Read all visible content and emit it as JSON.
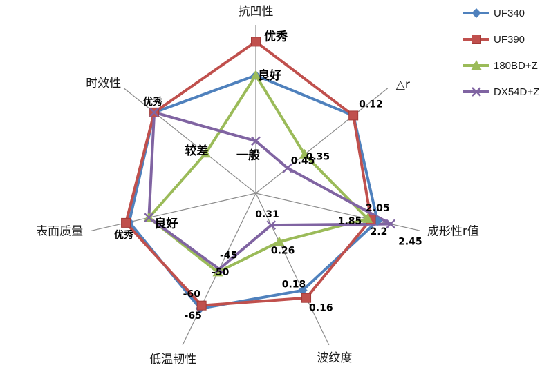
{
  "chart_data": {
    "type": "radar",
    "title": "",
    "axes": [
      "抗凹性",
      "△r",
      "成形性r值",
      "波纹度",
      "低温韧性",
      "表面质量",
      "时效性"
    ],
    "grid": "spokes-only",
    "legend_position": "top-right",
    "series": [
      {
        "name": "UF340",
        "color": "#4F81BD",
        "marker": "diamond",
        "values": [
          0.7,
          0.74,
          0.74,
          0.64,
          0.76,
          0.77,
          0.77
        ]
      },
      {
        "name": "UF390",
        "color": "#C0504D",
        "marker": "square",
        "values": [
          0.9,
          0.74,
          0.7,
          0.69,
          0.74,
          0.79,
          0.77
        ]
      },
      {
        "name": "180BD+Z",
        "color": "#9BBB59",
        "marker": "triangle",
        "values": [
          0.7,
          0.37,
          0.68,
          0.32,
          0.52,
          0.65,
          0.38
        ]
      },
      {
        "name": "DX54D+Z",
        "color": "#8064A2",
        "marker": "x",
        "values": [
          0.31,
          0.24,
          0.82,
          0.21,
          0.5,
          0.65,
          0.77
        ]
      }
    ],
    "annotations": [
      {
        "text": "优秀",
        "axis": 0,
        "r": 0.9,
        "dx": 12,
        "dy": -2,
        "size": "big"
      },
      {
        "text": "良好",
        "axis": 0,
        "r": 0.7,
        "dx": 3,
        "dy": 6,
        "size": "big"
      },
      {
        "text": "一般",
        "axis": 0,
        "r": 0.31,
        "dx": -28,
        "dy": 26,
        "size": "big"
      },
      {
        "text": "0.12",
        "axis": 1,
        "r": 0.74,
        "dx": 8,
        "dy": -12,
        "size": "small"
      },
      {
        "text": "0.35",
        "axis": 1,
        "r": 0.37,
        "dx": 2,
        "dy": 8,
        "size": "small"
      },
      {
        "text": "0.45",
        "axis": 1,
        "r": 0.24,
        "dx": 5,
        "dy": -6,
        "size": "small"
      },
      {
        "text": "2.05",
        "axis": 2,
        "r": 0.74,
        "dx": -17,
        "dy": -14,
        "size": "small"
      },
      {
        "text": "1.85",
        "axis": 2,
        "r": 0.68,
        "dx": -43,
        "dy": 8,
        "size": "small"
      },
      {
        "text": "2.2",
        "axis": 2,
        "r": 0.7,
        "dx": -1,
        "dy": 22,
        "size": "small"
      },
      {
        "text": "2.45",
        "axis": 2,
        "r": 0.82,
        "dx": 11,
        "dy": 30,
        "size": "small"
      },
      {
        "text": "0.31",
        "axis": 3,
        "r": 0.21,
        "dx": -23,
        "dy": -11,
        "size": "small"
      },
      {
        "text": "0.26",
        "axis": 3,
        "r": 0.32,
        "dx": -12,
        "dy": 17,
        "size": "small"
      },
      {
        "text": "0.18",
        "axis": 3,
        "r": 0.64,
        "dx": -30,
        "dy": -4,
        "size": "small"
      },
      {
        "text": "0.16",
        "axis": 3,
        "r": 0.69,
        "dx": 4,
        "dy": 19,
        "size": "small"
      },
      {
        "text": "-45",
        "axis": 4,
        "r": 0.52,
        "dx": 3,
        "dy": -20,
        "size": "small"
      },
      {
        "text": "-50",
        "axis": 4,
        "r": 0.5,
        "dx": -11,
        "dy": 9,
        "size": "small"
      },
      {
        "text": "-60",
        "axis": 4,
        "r": 0.74,
        "dx": -27,
        "dy": -12,
        "size": "small"
      },
      {
        "text": "-65",
        "axis": 4,
        "r": 0.76,
        "dx": -23,
        "dy": 15,
        "size": "small"
      },
      {
        "text": "良好",
        "axis": 5,
        "r": 0.65,
        "dx": 8,
        "dy": 14,
        "size": "big"
      },
      {
        "text": "优秀",
        "axis": 5,
        "r": 0.79,
        "dx": -17,
        "dy": 22,
        "size": "small"
      },
      {
        "text": "优秀",
        "axis": 6,
        "r": 0.77,
        "dx": -16,
        "dy": -11,
        "size": "small"
      },
      {
        "text": "较差",
        "axis": 6,
        "r": 0.38,
        "dx": -30,
        "dy": 2,
        "size": "big"
      }
    ]
  }
}
